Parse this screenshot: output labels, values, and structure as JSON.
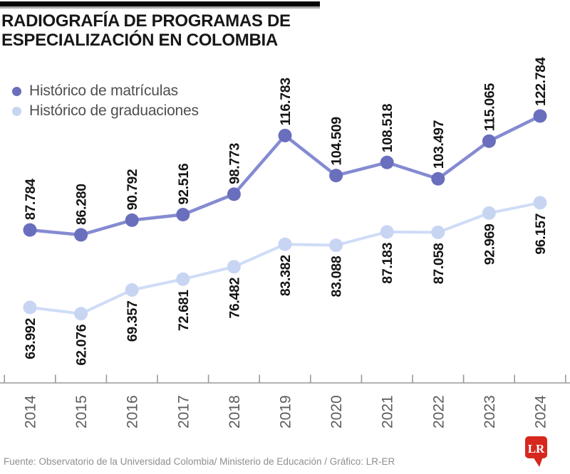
{
  "header": {
    "title_line1": "RADIOGRAFÍA DE PROGRAMAS DE",
    "title_line2": "ESPECIALIZACIÓN EN COLOMBIA"
  },
  "legend": {
    "items": [
      {
        "label": "Histórico de matrículas",
        "color": "#696fbc"
      },
      {
        "label": "Histórico de graduaciones",
        "color": "#c7d5f3"
      }
    ]
  },
  "chart_data": {
    "type": "line",
    "title": "RADIOGRAFÍA DE PROGRAMAS DE ESPECIALIZACIÓN EN COLOMBIA",
    "categories": [
      "2014",
      "2015",
      "2016",
      "2017",
      "2018",
      "2019",
      "2020",
      "2021",
      "2022",
      "2023",
      "2024"
    ],
    "series": [
      {
        "name": "Histórico de matrículas",
        "values": [
          87784,
          86280,
          90792,
          92516,
          98773,
          116783,
          104509,
          108518,
          103497,
          115065,
          122784
        ],
        "labels": [
          "87.784",
          "86.280",
          "90.792",
          "92.516",
          "98.773",
          "116.783",
          "104.509",
          "108.518",
          "103.497",
          "115.065",
          "122.784"
        ],
        "dot_color": "#696fbc",
        "line_color": "#858bd1",
        "label_position": "above"
      },
      {
        "name": "Histórico de graduaciones",
        "values": [
          63992,
          62076,
          69357,
          72681,
          76482,
          83382,
          83088,
          87183,
          87058,
          92969,
          96157
        ],
        "labels": [
          "63.992",
          "62.076",
          "69.357",
          "72.681",
          "76.482",
          "83.382",
          "83.088",
          "87.183",
          "87.058",
          "92.969",
          "96.157"
        ],
        "dot_color": "#c7d5f3",
        "line_color": "#cedcf6",
        "label_position": "below"
      }
    ],
    "xlabel": "",
    "ylabel": "",
    "grid": false,
    "legend_position": "top-left",
    "value_format": "thousands-dot",
    "axis_color": "#999999",
    "label_color": "#141414",
    "tick_label_color": "#5c5c5c"
  },
  "footer": {
    "source": "Fuente: Observatorio de la Universidad Colombia/ Ministerio de Educación / Gráfico: LR-ER",
    "logo_text": "LR",
    "logo_color": "#d6281e"
  }
}
